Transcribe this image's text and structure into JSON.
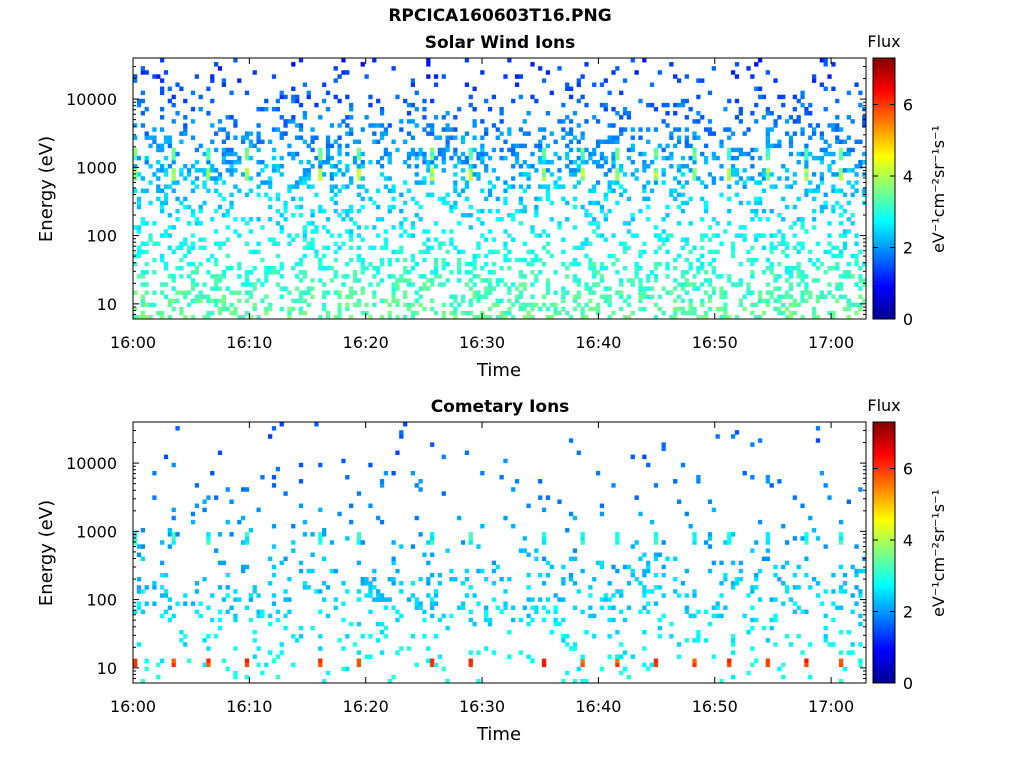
{
  "page_title": "RPCICA160603T16.PNG",
  "chart_data": [
    {
      "type": "heatmap",
      "title": "Solar Wind Ions",
      "xlabel": "Time",
      "ylabel": "Energy (eV)",
      "y_scale": "log",
      "ylim": [
        6,
        40000
      ],
      "x_range": [
        "16:00",
        "17:03"
      ],
      "x_ticks": [
        "16:00",
        "16:10",
        "16:20",
        "16:30",
        "16:40",
        "16:50",
        "17:00"
      ],
      "y_ticks": [
        {
          "value": 10,
          "label": "10"
        },
        {
          "value": 100,
          "label": "100"
        },
        {
          "value": 1000,
          "label": "1000"
        },
        {
          "value": 10000,
          "label": "10000"
        }
      ],
      "colorbar": {
        "title": "Flux",
        "label": "eV⁻¹cm⁻²sr⁻¹s⁻¹",
        "range": [
          0,
          7.3
        ],
        "ticks": [
          "0",
          "2",
          "4",
          "6"
        ],
        "colormap": "jet"
      },
      "features": [
        {
          "energy_eV": 800,
          "flux_approx": 3.5,
          "period_min": 3.2,
          "note": "periodic solar wind proton band"
        },
        {
          "energy_eV": 1600,
          "flux_approx": 3.0,
          "period_min": 3.2,
          "note": "periodic alpha band"
        },
        {
          "energy_eV": 7,
          "flux_approx": 3.2,
          "note": "low energy background"
        }
      ]
    },
    {
      "type": "heatmap",
      "title": "Cometary Ions",
      "xlabel": "Time",
      "ylabel": "Energy (eV)",
      "y_scale": "log",
      "ylim": [
        6,
        40000
      ],
      "x_range": [
        "16:00",
        "17:03"
      ],
      "x_ticks": [
        "16:00",
        "16:10",
        "16:20",
        "16:30",
        "16:40",
        "16:50",
        "17:00"
      ],
      "y_ticks": [
        {
          "value": 10,
          "label": "10"
        },
        {
          "value": 100,
          "label": "100"
        },
        {
          "value": 1000,
          "label": "1000"
        },
        {
          "value": 10000,
          "label": "10000"
        }
      ],
      "colorbar": {
        "title": "Flux",
        "label": "eV⁻¹cm⁻²sr⁻¹s⁻¹",
        "range": [
          0,
          7.3
        ],
        "ticks": [
          "0",
          "2",
          "4",
          "6"
        ],
        "colormap": "jet"
      },
      "features": [
        {
          "energy_eV": 800,
          "flux_approx": 2.5,
          "period_min": 3.2,
          "note": "periodic band"
        },
        {
          "energy_eV": 12,
          "flux_approx": 5.5,
          "period_min": 3.2,
          "note": "periodic low energy cometary ions"
        }
      ]
    }
  ]
}
